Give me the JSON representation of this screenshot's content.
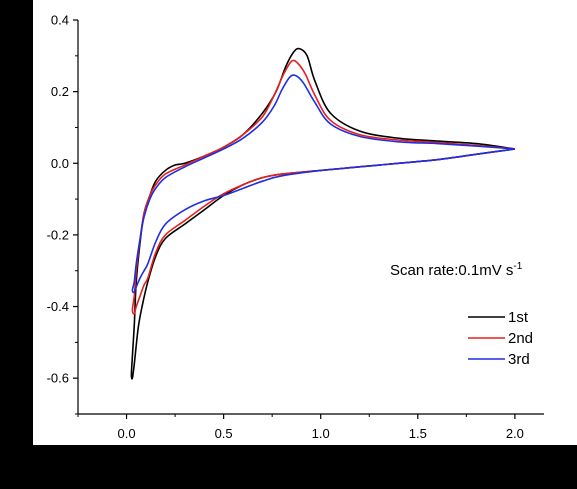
{
  "chart_data": {
    "type": "line",
    "title": "",
    "xlabel": "",
    "ylabel": "",
    "xlim": [
      -0.25,
      2.15
    ],
    "ylim": [
      -0.7,
      0.4
    ],
    "xticks": [
      0.0,
      0.5,
      1.0,
      1.5,
      2.0
    ],
    "xtick_labels": [
      "0.0",
      "0.5",
      "1.0",
      "1.5",
      "2.0"
    ],
    "yticks": [
      -0.6,
      -0.4,
      -0.2,
      0.0,
      0.2,
      0.4
    ],
    "ytick_labels": [
      "-0.6",
      "-0.4",
      "-0.2",
      "0.0",
      "0.2",
      "0.4"
    ],
    "grid": false,
    "frame": "left-bottom axes only",
    "annotation": {
      "text": "Scan rate:0.1mV s",
      "superscript": "-1"
    },
    "legend": {
      "placement": "right",
      "entries": [
        "1st",
        "2nd",
        "3rd"
      ]
    },
    "series": [
      {
        "name": "1st",
        "color": "#000000",
        "x": [
          2.0,
          1.8,
          1.6,
          1.4,
          1.2,
          1.05,
          0.97,
          0.93,
          0.89,
          0.86,
          0.82,
          0.77,
          0.7,
          0.6,
          0.5,
          0.4,
          0.3,
          0.25,
          0.2,
          0.15,
          0.12,
          0.09,
          0.07,
          0.05,
          0.04,
          0.03,
          0.025,
          0.03,
          0.04,
          0.06,
          0.08,
          0.11,
          0.15,
          0.2,
          0.3,
          0.4,
          0.5,
          0.6,
          0.7,
          0.8,
          1.0,
          1.2,
          1.4,
          1.6,
          1.8,
          2.0
        ],
        "y": [
          0.04,
          0.055,
          0.062,
          0.07,
          0.09,
          0.14,
          0.23,
          0.3,
          0.32,
          0.31,
          0.27,
          0.2,
          0.14,
          0.08,
          0.045,
          0.02,
          0.0,
          -0.005,
          -0.02,
          -0.05,
          -0.09,
          -0.14,
          -0.22,
          -0.33,
          -0.45,
          -0.54,
          -0.59,
          -0.6,
          -0.56,
          -0.46,
          -0.4,
          -0.33,
          -0.26,
          -0.21,
          -0.17,
          -0.13,
          -0.09,
          -0.06,
          -0.04,
          -0.03,
          -0.02,
          -0.01,
          0.0,
          0.01,
          0.025,
          0.04
        ]
      },
      {
        "name": "2nd",
        "color": "#e8201c",
        "x": [
          2.0,
          1.8,
          1.6,
          1.4,
          1.2,
          1.05,
          0.97,
          0.92,
          0.88,
          0.85,
          0.81,
          0.76,
          0.7,
          0.6,
          0.5,
          0.4,
          0.3,
          0.2,
          0.15,
          0.12,
          0.09,
          0.07,
          0.05,
          0.04,
          0.03,
          0.04,
          0.05,
          0.07,
          0.09,
          0.11,
          0.15,
          0.2,
          0.3,
          0.4,
          0.5,
          0.6,
          0.7,
          0.8,
          1.0,
          1.2,
          1.4,
          1.6,
          1.8,
          2.0
        ],
        "y": [
          0.04,
          0.05,
          0.058,
          0.065,
          0.08,
          0.12,
          0.19,
          0.25,
          0.28,
          0.285,
          0.25,
          0.19,
          0.13,
          0.08,
          0.045,
          0.02,
          -0.005,
          -0.03,
          -0.06,
          -0.09,
          -0.14,
          -0.21,
          -0.3,
          -0.37,
          -0.41,
          -0.42,
          -0.4,
          -0.37,
          -0.34,
          -0.32,
          -0.25,
          -0.2,
          -0.16,
          -0.12,
          -0.085,
          -0.06,
          -0.04,
          -0.03,
          -0.02,
          -0.01,
          0.0,
          0.01,
          0.025,
          0.04
        ]
      },
      {
        "name": "3rd",
        "color": "#1f2ee0",
        "x": [
          2.0,
          1.8,
          1.6,
          1.4,
          1.2,
          1.05,
          0.97,
          0.91,
          0.87,
          0.84,
          0.8,
          0.76,
          0.7,
          0.6,
          0.5,
          0.4,
          0.3,
          0.2,
          0.15,
          0.12,
          0.09,
          0.07,
          0.05,
          0.04,
          0.03,
          0.04,
          0.05,
          0.07,
          0.09,
          0.11,
          0.15,
          0.2,
          0.3,
          0.4,
          0.5,
          0.6,
          0.7,
          0.8,
          1.0,
          1.2,
          1.4,
          1.6,
          1.8,
          2.0
        ],
        "y": [
          0.04,
          0.048,
          0.055,
          0.06,
          0.075,
          0.11,
          0.17,
          0.225,
          0.245,
          0.24,
          0.205,
          0.16,
          0.115,
          0.07,
          0.04,
          0.015,
          -0.01,
          -0.04,
          -0.07,
          -0.1,
          -0.15,
          -0.21,
          -0.28,
          -0.33,
          -0.355,
          -0.36,
          -0.345,
          -0.32,
          -0.3,
          -0.28,
          -0.22,
          -0.17,
          -0.13,
          -0.105,
          -0.09,
          -0.07,
          -0.05,
          -0.035,
          -0.02,
          -0.01,
          0.0,
          0.01,
          0.025,
          0.04
        ]
      }
    ]
  }
}
